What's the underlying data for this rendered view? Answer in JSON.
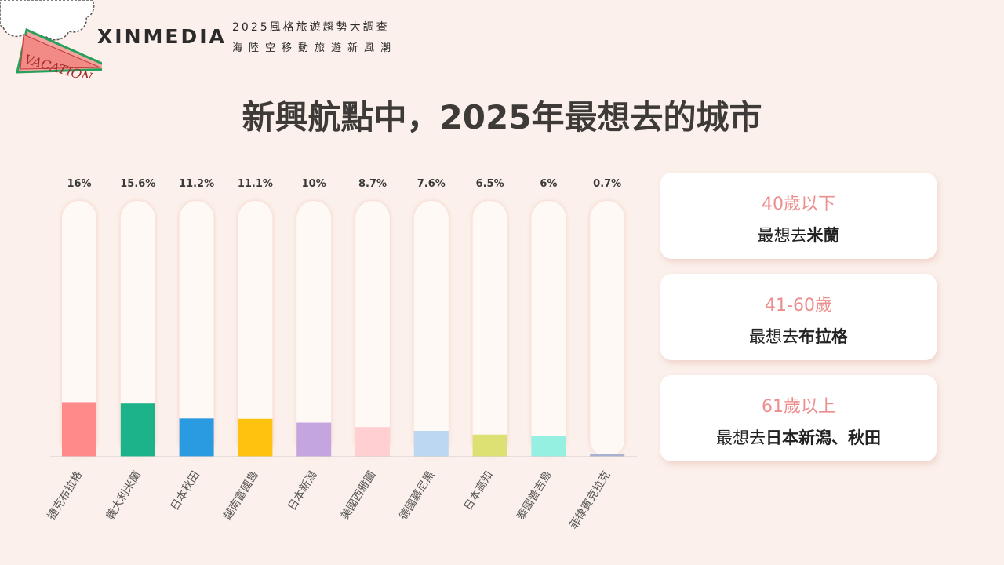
{
  "header": {
    "logo_badge": "VACATION",
    "brand": "XINMEDIA",
    "survey_title": "2025風格旅遊趨勢大調查",
    "survey_subtitle": "海陸空移動旅遊新風潮"
  },
  "title": "新興航點中，2025年最想去的城市",
  "colors": {
    "background": "#fbf0eb",
    "track": "#fff9f6",
    "age_text": "#ec8e8e"
  },
  "chart_data": {
    "type": "bar",
    "categories": [
      "捷克布拉格",
      "義大利米蘭",
      "日本秋田",
      "越南富國島",
      "日本新潟",
      "美國西雅圖",
      "德國慕尼黑",
      "日本高知",
      "泰國普吉島",
      "菲律賓克拉克"
    ],
    "values": [
      16,
      15.6,
      11.2,
      11.1,
      10,
      8.7,
      7.6,
      6.5,
      6,
      0.7
    ],
    "value_labels": [
      "16%",
      "15.6%",
      "11.2%",
      "11.1%",
      "10%",
      "8.7%",
      "7.6%",
      "6.5%",
      "6%",
      "0.7%"
    ],
    "bar_colors": [
      "#ff8a8a",
      "#1db38a",
      "#2a9be0",
      "#ffc20f",
      "#c5a5e0",
      "#ffcfd2",
      "#bcd7f2",
      "#dde173",
      "#95f0e2",
      "#aab0d2"
    ],
    "ylim": [
      0,
      75
    ],
    "unit": "%"
  },
  "cards": [
    {
      "age": "40歲以下",
      "prefix": "最想去",
      "city": "米蘭"
    },
    {
      "age": "41-60歲",
      "prefix": "最想去",
      "city": "布拉格"
    },
    {
      "age": "61歲以上",
      "prefix": "最想去",
      "city": "日本新潟、秋田"
    }
  ]
}
